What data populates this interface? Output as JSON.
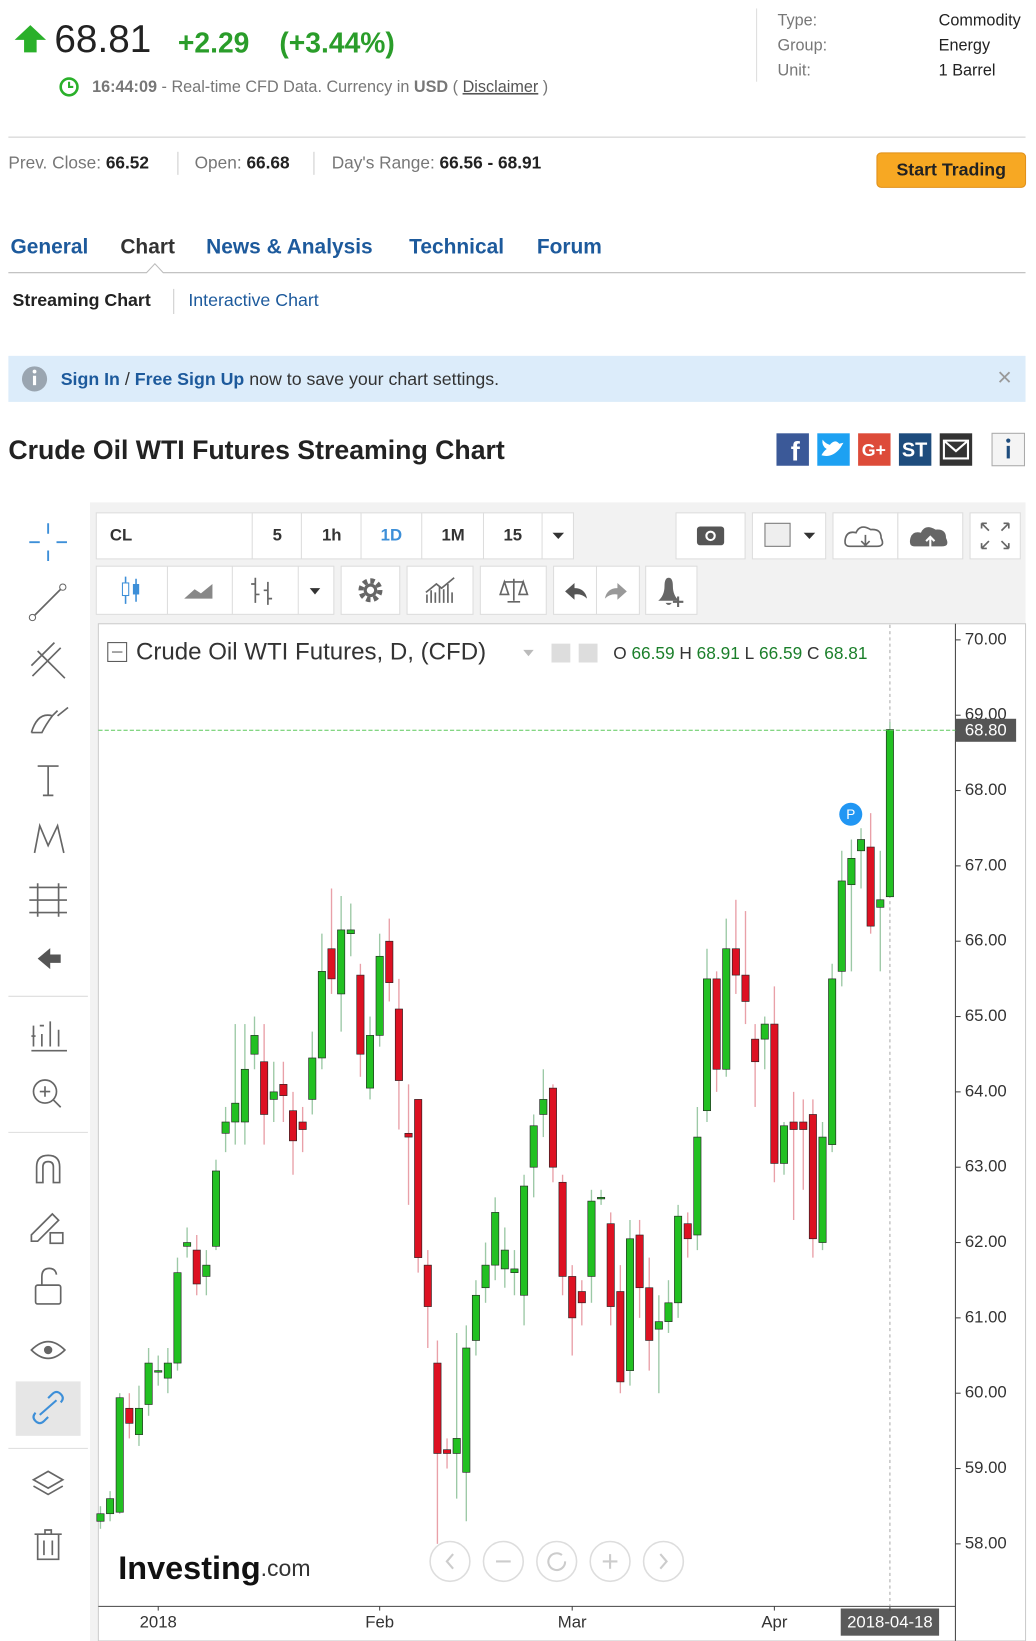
{
  "header": {
    "price": "68.81",
    "change": "+2.29",
    "change_pct": "(+3.44%)",
    "time": "16:44:09",
    "realtime_text": "- Real-time CFD Data. Currency in",
    "currency": "USD",
    "paren_open": "(",
    "disclaimer": "Disclaimer",
    "paren_close": ")"
  },
  "info": [
    {
      "label": "Type:",
      "value": "Commodity"
    },
    {
      "label": "Group:",
      "value": "Energy"
    },
    {
      "label": "Unit:",
      "value": "1 Barrel"
    }
  ],
  "stats": [
    {
      "label": "Prev. Close:",
      "value": "66.52"
    },
    {
      "label": "Open:",
      "value": "66.68"
    },
    {
      "label": "Day's Range:",
      "value": "66.56 - 68.91"
    }
  ],
  "button": "Start Trading",
  "tabs": [
    "General",
    "Chart",
    "News & Analysis",
    "Technical",
    "Forum"
  ],
  "subtabs": [
    "Streaming Chart",
    "Interactive Chart"
  ],
  "banner": {
    "sign_in": "Sign In",
    "sep": "/",
    "sign_up": "Free Sign Up",
    "text": "now to save your chart settings.",
    "close": "×"
  },
  "chart_title": "Crude Oil WTI Futures Streaming Chart",
  "social": [
    "G+",
    "ST"
  ],
  "toolbar": {
    "symbol": "CL",
    "intervals": [
      "5",
      "1h",
      "1D",
      "1M",
      "15"
    ]
  },
  "chart_data": {
    "type": "candlestick",
    "legend_title": "Crude Oil WTI Futures, D, (CFD)",
    "legend_ohlc": [
      {
        "label": "O",
        "value": "66.59"
      },
      {
        "label": "H",
        "value": "68.91"
      },
      {
        "label": "L",
        "value": "66.59"
      },
      {
        "label": "C",
        "value": "68.81"
      }
    ],
    "marker_label": "P",
    "logo": "Investing",
    "logo_suffix": ".com",
    "up_color": "#22c022",
    "down_color": "#dd1122",
    "categories": [
      null,
      null,
      null,
      null,
      null,
      null,
      "2018",
      null,
      null,
      null,
      null,
      null,
      null,
      null,
      null,
      null,
      null,
      null,
      null,
      null,
      null,
      null,
      null,
      null,
      null,
      null,
      null,
      null,
      null,
      "Feb",
      null,
      null,
      null,
      null,
      null,
      null,
      null,
      null,
      null,
      null,
      null,
      null,
      null,
      null,
      null,
      null,
      null,
      null,
      null,
      "Mar",
      null,
      null,
      null,
      null,
      null,
      null,
      null,
      null,
      null,
      null,
      null,
      null,
      null,
      null,
      null,
      null,
      null,
      null,
      null,
      null,
      "Apr",
      null,
      null,
      null,
      null,
      null,
      null,
      null,
      null,
      null,
      null,
      null,
      "2018-04-18"
    ],
    "open": [
      58.3,
      58.4,
      58.42,
      59.8,
      59.45,
      59.85,
      60.3,
      60.2,
      60.4,
      61.95,
      61.9,
      61.55,
      61.95,
      63.45,
      63.6,
      63.6,
      64.5,
      64.4,
      63.9,
      64.1,
      63.75,
      63.6,
      63.9,
      64.45,
      65.9,
      65.3,
      66.1,
      65.55,
      64.05,
      64.75,
      66.0,
      65.1,
      63.45,
      63.9,
      61.7,
      60.4,
      59.25,
      59.2,
      58.95,
      60.7,
      61.4,
      61.7,
      61.65,
      61.6,
      61.3,
      63.0,
      63.7,
      64.05,
      62.8,
      61.55,
      61.35,
      61.55,
      62.6,
      62.25,
      61.35,
      60.3,
      62.1,
      61.4,
      60.85,
      60.95,
      61.2,
      62.25,
      62.1,
      63.75,
      65.5,
      64.3,
      65.9,
      65.55,
      64.7,
      64.7,
      64.9,
      63.05,
      63.6,
      63.6,
      63.7,
      62.0,
      63.3,
      65.6,
      66.75,
      67.2,
      67.25,
      66.45,
      66.59
    ],
    "high": [
      58.5,
      58.7,
      60.0,
      60.0,
      60.1,
      60.6,
      60.5,
      60.6,
      61.8,
      62.2,
      62.1,
      61.9,
      63.1,
      63.8,
      64.9,
      64.9,
      65.0,
      64.9,
      64.4,
      64.4,
      64.0,
      63.8,
      64.8,
      66.1,
      66.7,
      66.6,
      66.5,
      65.7,
      65.0,
      66.1,
      66.3,
      65.5,
      64.1,
      63.9,
      61.9,
      60.7,
      59.4,
      60.8,
      60.9,
      61.5,
      62.0,
      62.6,
      62.2,
      61.9,
      62.9,
      63.7,
      64.3,
      64.1,
      62.9,
      61.7,
      61.5,
      62.7,
      62.7,
      62.4,
      61.7,
      62.3,
      62.3,
      61.8,
      61.3,
      61.5,
      62.5,
      62.4,
      63.8,
      65.9,
      65.6,
      66.3,
      66.55,
      66.4,
      64.9,
      65.0,
      65.4,
      63.6,
      64.0,
      63.9,
      63.9,
      63.6,
      65.7,
      67.2,
      67.35,
      67.5,
      67.7,
      67.2,
      68.91
    ],
    "low": [
      58.2,
      58.3,
      58.4,
      59.4,
      59.3,
      59.7,
      60.1,
      60.0,
      60.3,
      61.8,
      61.3,
      61.3,
      61.9,
      63.2,
      63.3,
      63.3,
      64.3,
      63.3,
      63.6,
      63.6,
      62.9,
      63.2,
      63.7,
      64.3,
      65.3,
      64.8,
      65.8,
      64.2,
      63.9,
      64.6,
      65.2,
      63.5,
      62.5,
      61.6,
      60.6,
      58.0,
      59.0,
      58.6,
      58.3,
      60.5,
      61.2,
      61.5,
      61.4,
      61.3,
      60.9,
      62.6,
      63.4,
      62.8,
      61.3,
      60.5,
      60.9,
      61.2,
      62.5,
      60.9,
      60.0,
      60.1,
      61.0,
      60.3,
      60.0,
      60.8,
      61.0,
      61.8,
      61.9,
      63.6,
      64.0,
      64.2,
      65.3,
      64.9,
      63.8,
      64.3,
      62.8,
      62.9,
      62.3,
      62.7,
      61.8,
      61.9,
      63.2,
      65.4,
      65.6,
      66.7,
      66.1,
      65.6,
      66.59
    ],
    "close": [
      58.4,
      58.6,
      59.94,
      59.6,
      59.8,
      60.4,
      60.3,
      60.4,
      61.6,
      62.0,
      61.45,
      61.7,
      62.95,
      63.6,
      63.85,
      64.3,
      64.75,
      63.7,
      64.0,
      63.95,
      63.35,
      63.5,
      64.45,
      65.6,
      65.5,
      66.15,
      66.15,
      64.5,
      64.75,
      65.8,
      65.45,
      64.15,
      63.4,
      61.8,
      61.15,
      59.2,
      59.2,
      59.4,
      60.6,
      61.3,
      61.7,
      62.4,
      61.9,
      61.65,
      62.75,
      63.55,
      63.9,
      63.0,
      61.55,
      61.0,
      61.2,
      62.55,
      62.6,
      61.15,
      60.15,
      62.05,
      61.4,
      60.7,
      60.95,
      61.2,
      62.35,
      62.05,
      63.4,
      65.5,
      64.3,
      65.9,
      65.55,
      65.2,
      64.4,
      64.9,
      63.05,
      63.55,
      63.5,
      63.5,
      62.05,
      63.4,
      65.5,
      66.8,
      67.1,
      67.35,
      66.2,
      66.55,
      68.81
    ],
    "ylim": [
      57.17,
      70.2
    ],
    "yticks": [
      {
        "value": 58,
        "label": "58.00"
      },
      {
        "value": 59,
        "label": "59.00"
      },
      {
        "value": 60,
        "label": "60.00"
      },
      {
        "value": 61,
        "label": "61.00"
      },
      {
        "value": 62,
        "label": "62.00"
      },
      {
        "value": 63,
        "label": "63.00"
      },
      {
        "value": 64,
        "label": "64.00"
      },
      {
        "value": 65,
        "label": "65.00"
      },
      {
        "value": 66,
        "label": "66.00"
      },
      {
        "value": 67,
        "label": "67.00"
      },
      {
        "value": 68,
        "label": "68.00"
      },
      {
        "value": 69,
        "label": "69.00"
      },
      {
        "value": 70,
        "label": "70.00"
      }
    ],
    "current_price": {
      "value": 68.8,
      "label": "68.80"
    }
  }
}
